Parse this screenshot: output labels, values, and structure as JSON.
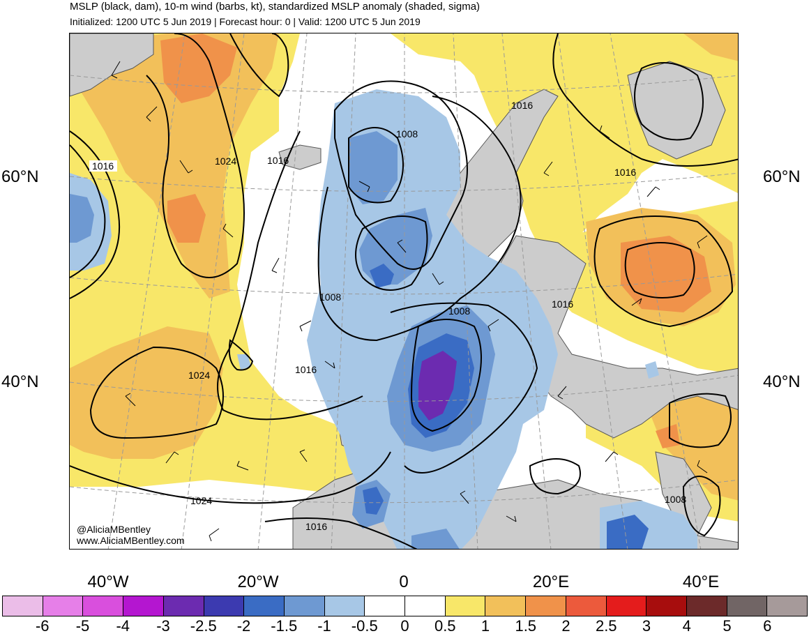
{
  "header": {
    "title": "MSLP (black, dam), 10-m wind (barbs, kt), standardized MSLP anomaly (shaded, sigma)",
    "subtitle": "Initialized: 1200 UTC 5 Jun 2019 | Forecast hour: 0 | Valid: 1200 UTC 5 Jun 2019"
  },
  "map": {
    "lat_labels": {
      "lat60_left": "60°N",
      "lat60_right": "60°N",
      "lat40_left": "40°N",
      "lat40_right": "40°N"
    },
    "lon_labels": {
      "w40": "40°W",
      "w20": "20°W",
      "zero": "0",
      "e20": "20°E",
      "e40": "40°E"
    },
    "isobar_labels": {
      "l1016_nw": "1016",
      "l1024_n": "1024",
      "l1016_iceland": "1016",
      "l1008_north": "1008",
      "l1016_norway": "1016",
      "l1016_finland": "1016",
      "l1008_uk": "1008",
      "l1008_alps": "1008",
      "l1016_balkans": "1016",
      "l1024_azores": "1024",
      "l1016_mid": "1016",
      "l1024_south": "1024",
      "l1016_morocco": "1016",
      "l1008_mideast": "1008"
    },
    "colors": {
      "land": "#cccccc",
      "coast": "#555555",
      "grid": "#999999",
      "isobar": "#000000"
    }
  },
  "credits": {
    "handle": "@AliciaMBentley",
    "website": "www.AliciaMBentley.com"
  },
  "colorbar": {
    "colors": [
      "#ebbde8",
      "#e67fe8",
      "#d94fdd",
      "#b416d0",
      "#6c2bb0",
      "#3c3ab0",
      "#3a6cc4",
      "#6e99d2",
      "#a7c7e6",
      "#ffffff",
      "#ffffff",
      "#f8e769",
      "#f2c05a",
      "#f0924a",
      "#ec5a3c",
      "#e41c1c",
      "#a70d0d",
      "#6c2a2a",
      "#716565",
      "#a69a9a"
    ],
    "labels": [
      "-6",
      "-5",
      "-4",
      "-3",
      "-2.5",
      "-2",
      "-1.5",
      "-1",
      "-0.5",
      "0",
      "0.5",
      "1",
      "1.5",
      "2",
      "2.5",
      "3",
      "4",
      "5",
      "6"
    ]
  }
}
